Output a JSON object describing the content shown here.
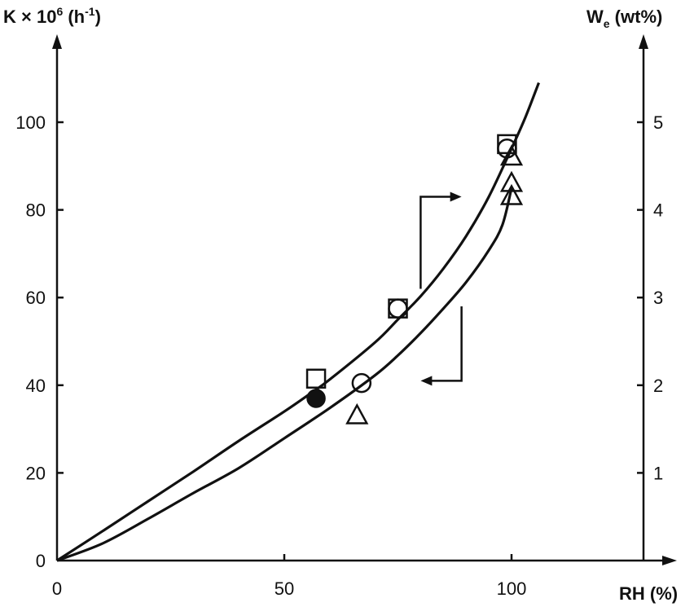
{
  "chart_data": {
    "type": "scatter",
    "xlabel": "RH (%)",
    "ylabel_left": {
      "base": "K × 10",
      "sup": "6",
      "unit_open": " (h",
      "unit_sup": "-1",
      "unit_close": ")"
    },
    "ylabel_right": {
      "base": "W",
      "sub": "e",
      "unit": " (wt%)"
    },
    "x_ticks": [
      0,
      50,
      100
    ],
    "y_left_ticks": [
      0,
      20,
      40,
      60,
      80,
      100
    ],
    "y_right_ticks": [
      1,
      2,
      3,
      4,
      5
    ],
    "xlim": [
      0,
      136
    ],
    "ylim_left": [
      0,
      120
    ],
    "ylim_right": [
      0,
      6
    ],
    "grid": false,
    "legend": "none",
    "axis_indicators": [
      {
        "points_to": "right-axis",
        "corner": [
          80,
          62
        ],
        "top": [
          80,
          83
        ],
        "tip": [
          89,
          83
        ]
      },
      {
        "points_to": "left-axis",
        "corner": [
          89,
          58
        ],
        "bottom": [
          89,
          41
        ],
        "tip": [
          80,
          41
        ]
      }
    ],
    "curves": [
      {
        "axis": "left",
        "points": [
          [
            0,
            0
          ],
          [
            10,
            6.7
          ],
          [
            20,
            13.5
          ],
          [
            30,
            20.3
          ],
          [
            40,
            27.3
          ],
          [
            50,
            34
          ],
          [
            56,
            38.3
          ],
          [
            60,
            41.3
          ],
          [
            70,
            49.8
          ],
          [
            75,
            55
          ],
          [
            80,
            60.3
          ],
          [
            85,
            66.6
          ],
          [
            90,
            74
          ],
          [
            95,
            83
          ],
          [
            100,
            94
          ],
          [
            103,
            101
          ],
          [
            106,
            109
          ]
        ]
      },
      {
        "axis": "left",
        "points": [
          [
            0,
            0
          ],
          [
            10,
            3.9
          ],
          [
            20,
            9.5
          ],
          [
            30,
            15.4
          ],
          [
            40,
            21.1
          ],
          [
            50,
            27.9
          ],
          [
            60,
            34.8
          ],
          [
            70,
            42.3
          ],
          [
            75,
            46.8
          ],
          [
            80,
            51.9
          ],
          [
            85,
            57.5
          ],
          [
            90,
            63.5
          ],
          [
            95,
            70.8
          ],
          [
            98,
            76.6
          ],
          [
            100,
            85
          ]
        ]
      }
    ],
    "series": [
      {
        "marker": "open-square",
        "axis": "left",
        "points": [
          [
            57,
            41.5
          ],
          [
            75,
            57.5
          ],
          [
            99,
            95
          ]
        ]
      },
      {
        "marker": "open-circle",
        "axis": "left",
        "points": [
          [
            67,
            40.5
          ],
          [
            75,
            57.5
          ],
          [
            99,
            94
          ]
        ]
      },
      {
        "marker": "open-triangle",
        "axis": "left",
        "points": [
          [
            66,
            33
          ],
          [
            100,
            92
          ],
          [
            100,
            86
          ],
          [
            100,
            83
          ]
        ]
      },
      {
        "marker": "filled-circle",
        "axis": "left",
        "points": [
          [
            57,
            37
          ]
        ]
      }
    ]
  }
}
